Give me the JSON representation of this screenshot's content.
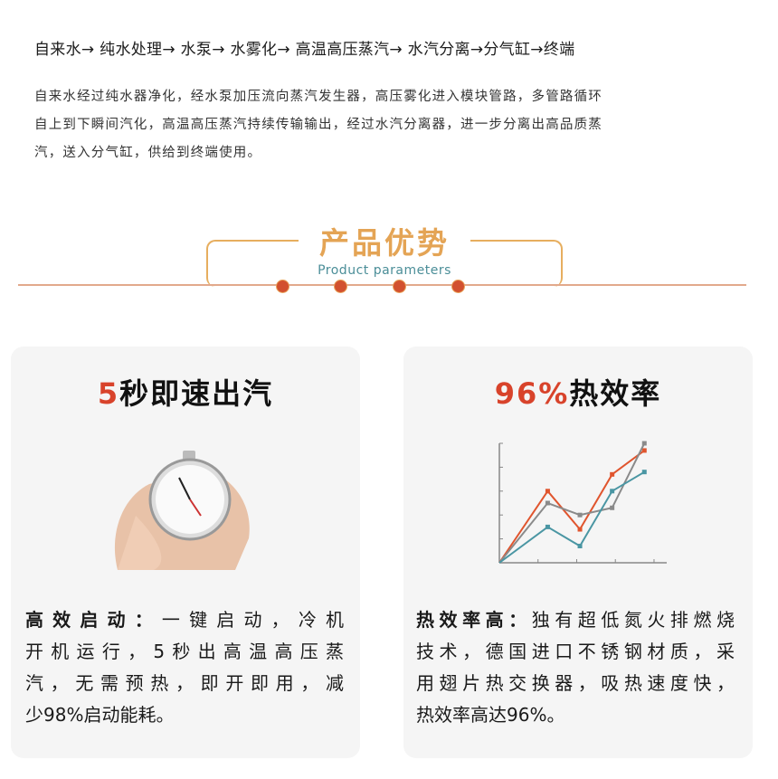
{
  "process_flow": "自来水→ 纯水处理→ 水泵→ 水雾化→ 高温高压蒸汽→ 水汽分离→分气缸→终端",
  "intro_lines": [
    "自来水经过纯水器净化，经水泵加压流向蒸汽发生器，高压雾化进入模块管路，多管路循环",
    "自上到下瞬间汽化，高温高压蒸汽持续传输输出，经过水汽分离器，进一步分离出高品质蒸",
    "汽，送入分气缸，供给到终端使用。"
  ],
  "section": {
    "title": "产品优势",
    "subtitle": "Product parameters"
  },
  "colors": {
    "accent_red": "#d8432b",
    "title_gold": "#e4a455",
    "subtitle_teal": "#4b8e98"
  },
  "cards": [
    {
      "title_highlight": "5",
      "title_rest": "秒即速出汽",
      "image": "stopwatch-in-hand",
      "lead": "高效启动：",
      "lines": [
        "一键启动，冷机",
        "开机运行，5秒出高温高压蒸",
        "汽，无需预热，即开即用，减",
        "少98%启动能耗。"
      ]
    },
    {
      "title_highlight": "96%",
      "title_rest": "热效率",
      "image": "line-chart-rising",
      "lead": "热效率高：",
      "lines": [
        "独有超低氮火排燃烧",
        "技术，德国进口不锈钢材质，采",
        "用翅片热交换器，吸热速度快，",
        "热效率高达96%。"
      ]
    }
  ],
  "chart_data": {
    "type": "line",
    "x": [
      0,
      1.5,
      2.5,
      3.5,
      4.5
    ],
    "ylim": [
      0,
      5
    ],
    "xticks": 4,
    "yticks": 5,
    "grid": false,
    "series": [
      {
        "color": "#e0552e",
        "values": [
          0,
          3.0,
          1.4,
          3.7,
          4.7
        ]
      },
      {
        "color": "#8a8a8a",
        "values": [
          0,
          2.5,
          2.0,
          2.3,
          5.0
        ]
      },
      {
        "color": "#4a96a3",
        "values": [
          0,
          1.5,
          0.7,
          3.0,
          3.8
        ]
      }
    ]
  }
}
